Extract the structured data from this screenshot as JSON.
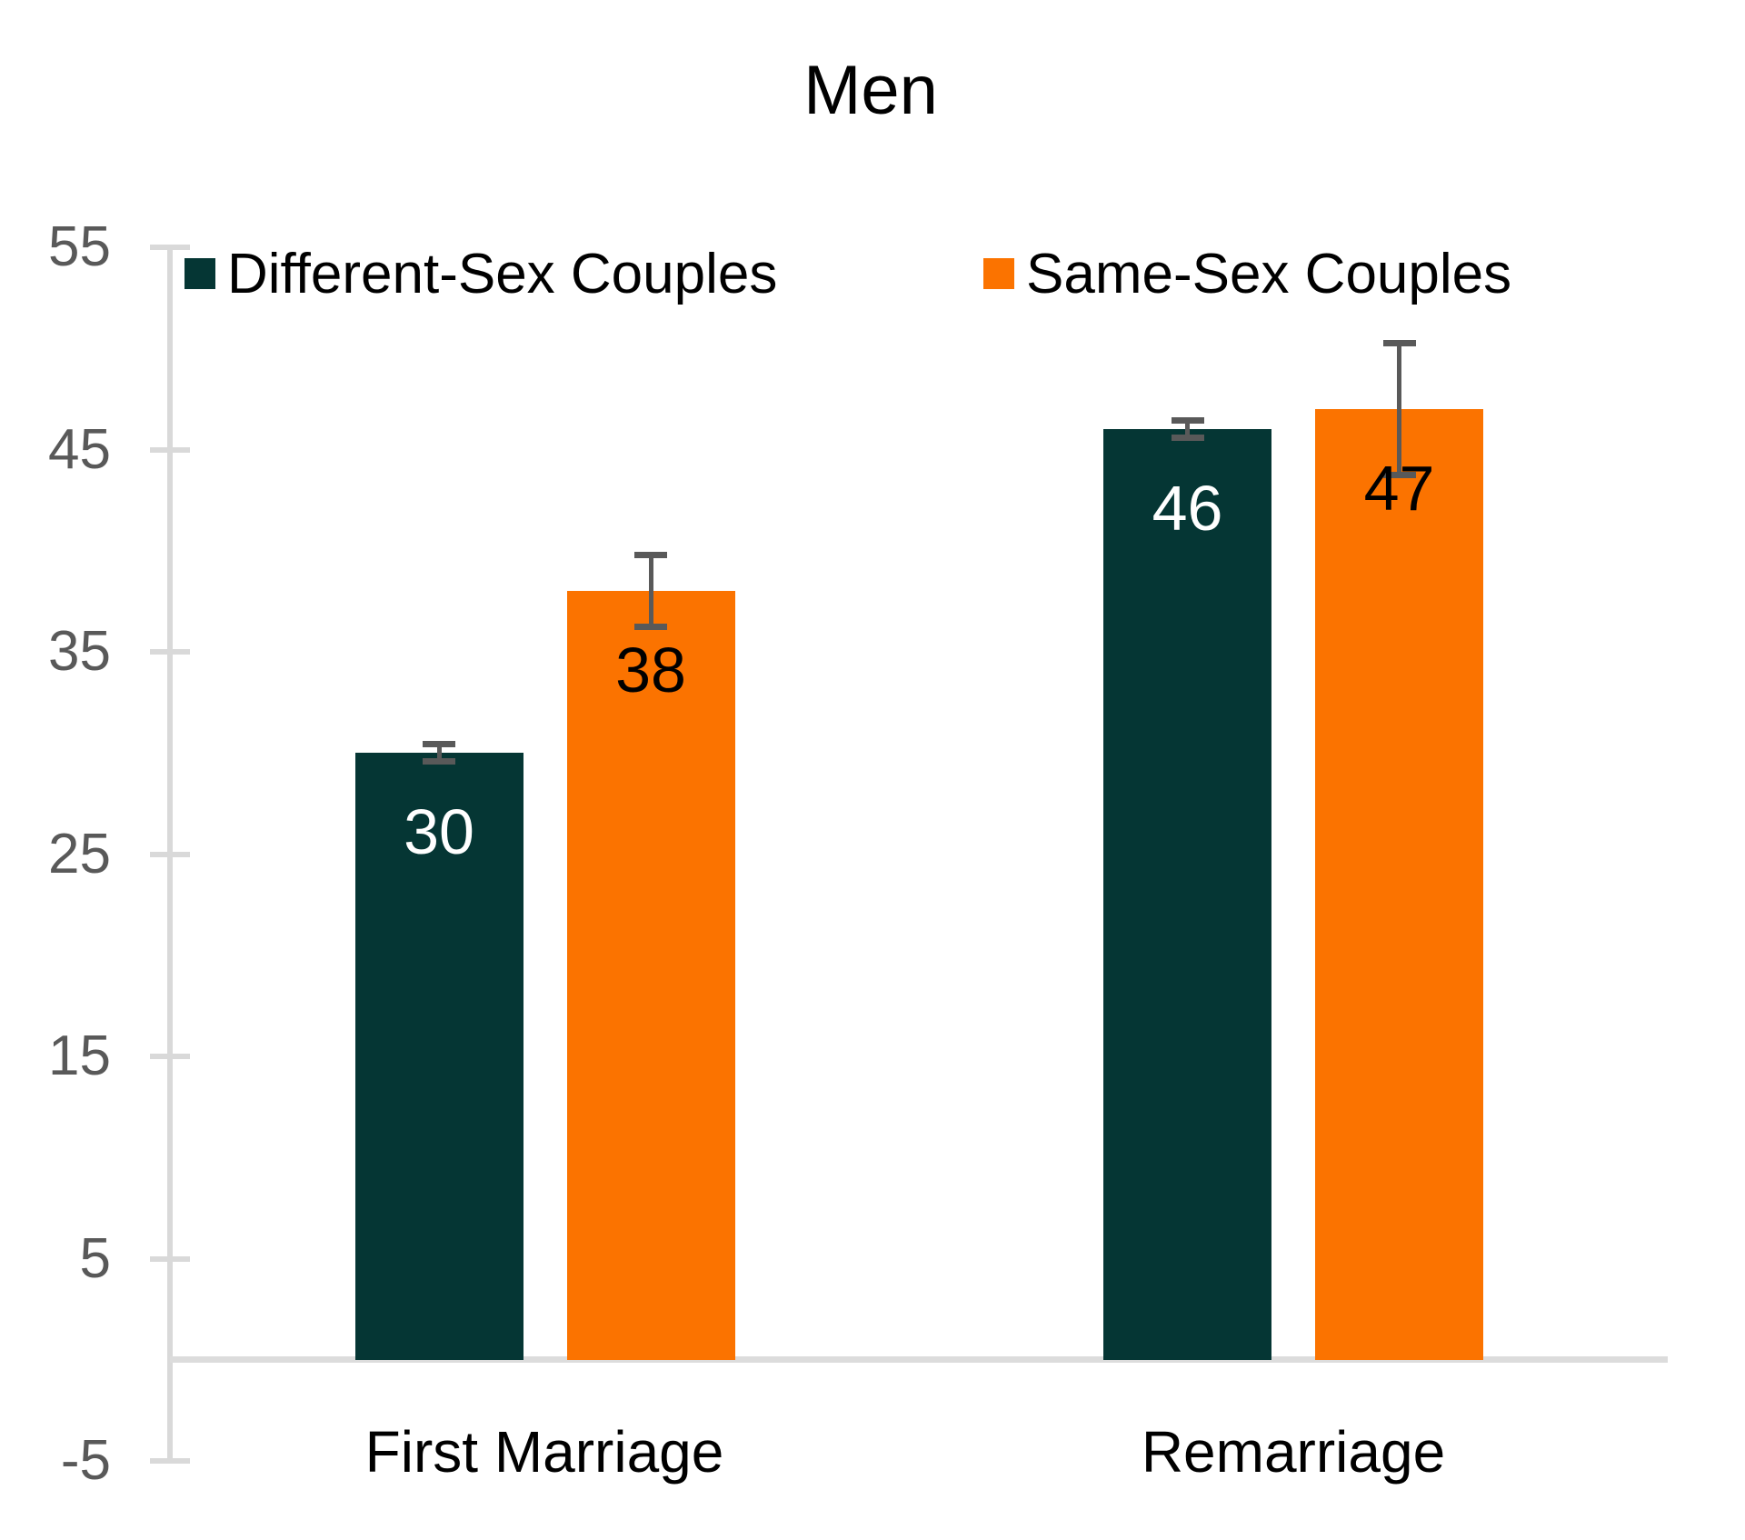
{
  "title": "Men",
  "colors": {
    "different_sex_bar": "#053634",
    "same_sex_bar": "#fb7300",
    "axis_line": "#d9d9d9",
    "baseline": "#dcdcdc",
    "tick_label": "#595959",
    "error_bar": "#595959",
    "title_text": "#000000"
  },
  "chart_data": {
    "type": "bar",
    "title": "Men",
    "categories": [
      "First Marriage",
      "Remarriage"
    ],
    "series": [
      {
        "name": "Different-Sex Couples",
        "values": [
          30,
          46
        ],
        "errors": [
          0.45,
          0.45
        ],
        "color": "#053634",
        "value_label_color": "#ffffff"
      },
      {
        "name": "Same-Sex Couples",
        "values": [
          38,
          47
        ],
        "errors": [
          1.8,
          3.3
        ],
        "color": "#fb7300",
        "value_label_color": "#000000"
      }
    ],
    "value_labels": [
      "30",
      "38",
      "46",
      "47"
    ],
    "yticks": [
      55,
      45,
      35,
      25,
      15,
      5,
      -5
    ],
    "ylim": [
      -5,
      55
    ],
    "xlabel": "",
    "ylabel": "",
    "grid": false,
    "legend_position": "top-left inside plot"
  }
}
